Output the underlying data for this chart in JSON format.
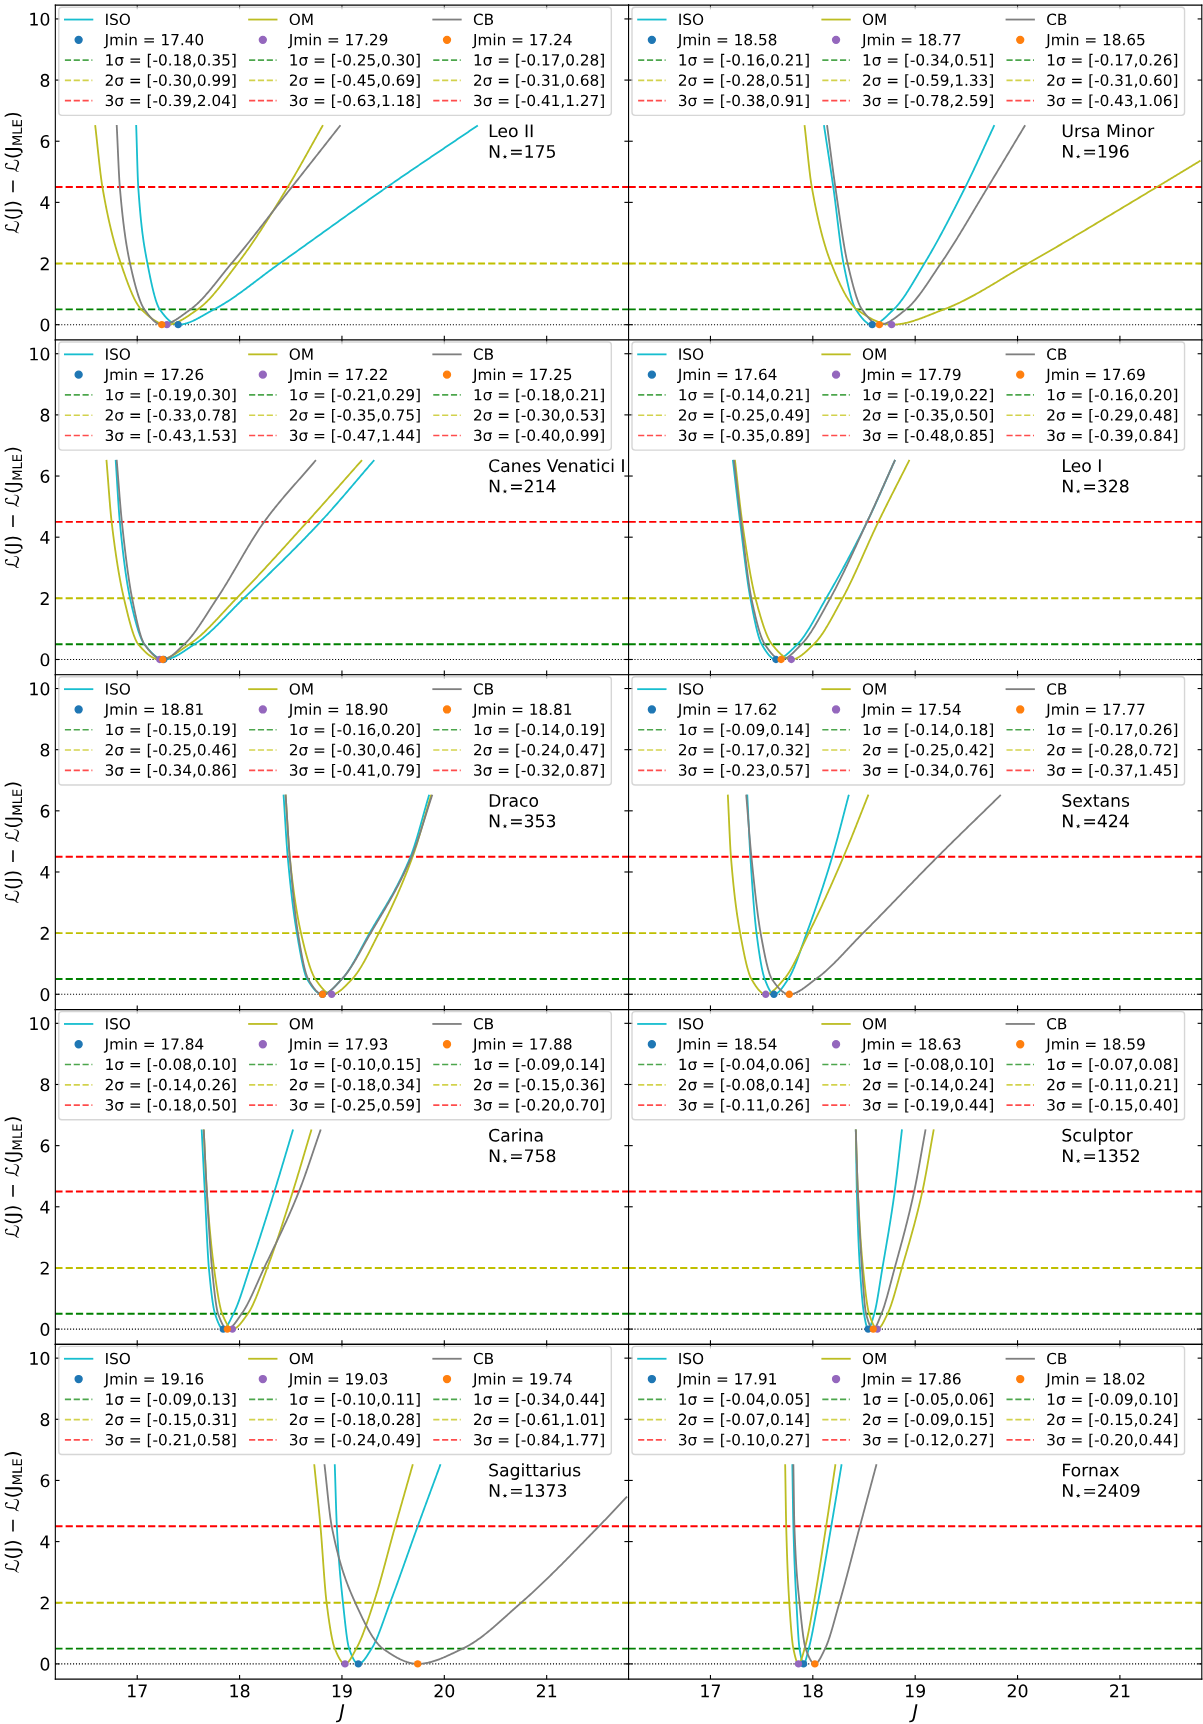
{
  "chart_data": [
    {
      "type": "line",
      "ylabel": "ℒ(J) − ℒ(J$_{MLE}$)",
      "annotations": [
        "Leo II\nN$_{⋆}$=175",
        "1σ = [-0.18,0.35]",
        "2σ = [-0.30,0.99]",
        "3σ = [-0.39,2.04]",
        "1σ = [-0.25,0.30]",
        "2σ = [-0.45,0.69]",
        "3σ = [-0.63,1.18]",
        "1σ = [-0.17,0.28]",
        "2σ = [-0.31,0.68]",
        "3σ = [-0.41,1.27]"
      ],
      "xlim": [
        16.2,
        21.8
      ],
      "ylim": [
        -0.5,
        10.45
      ],
      "xticks": [
        17,
        18,
        19,
        20,
        21
      ],
      "yticks": [
        0,
        2,
        4,
        6,
        8,
        10
      ],
      "tick_labels": "y",
      "legend": "top",
      "series": [
        {
          "name": "ISO",
          "color": "#17becf",
          "x": [
            16.99,
            17.01,
            17.1,
            17.22,
            17.4,
            17.75,
            18.39,
            19.44,
            20.32
          ],
          "values": [
            6.5,
            4.5,
            2,
            0.5,
            0,
            0.5,
            2,
            4.5,
            6.5
          ]
        },
        {
          "name": "Jmin = 17.40",
          "type": "scatter",
          "marker": "circle",
          "color": "#1f77b4",
          "x": [
            17.4
          ],
          "values": [
            0
          ]
        },
        {
          "name": "OM",
          "color": "#bcbd22",
          "x": [
            16.59,
            16.66,
            16.84,
            17.04,
            17.29,
            17.59,
            17.98,
            18.47,
            18.81
          ],
          "values": [
            6.5,
            4.5,
            2,
            0.5,
            0,
            0.5,
            2,
            4.5,
            6.5
          ]
        },
        {
          "name": "Jmin = 17.29",
          "type": "scatter",
          "marker": "circle",
          "color": "#9467bd",
          "x": [
            17.29
          ],
          "values": [
            0
          ]
        },
        {
          "name": "CB",
          "color": "#7f7f7f",
          "x": [
            16.8,
            16.83,
            16.93,
            17.07,
            17.24,
            17.52,
            17.92,
            18.51,
            18.98
          ],
          "values": [
            6.5,
            4.5,
            2,
            0.5,
            0,
            0.5,
            2,
            4.5,
            6.5
          ]
        },
        {
          "name": "Jmin = 17.24",
          "type": "scatter",
          "marker": "circle",
          "color": "#ff7f0e",
          "x": [
            17.24
          ],
          "values": [
            0
          ]
        }
      ],
      "ref_lines": [
        {
          "axis": "y",
          "value": 0.5,
          "color": "#008000",
          "line_style": "dashed"
        },
        {
          "axis": "y",
          "value": 2,
          "color": "#bfbf00",
          "line_style": "dashed"
        },
        {
          "axis": "y",
          "value": 4.5,
          "color": "#ff0000",
          "line_style": "dashed"
        },
        {
          "axis": "y",
          "value": 0,
          "color": "#000000",
          "line_style": "dotted"
        }
      ]
    },
    {
      "type": "line",
      "annotations": [
        "Ursa Minor\nN$_{⋆}$=196",
        "1σ = [-0.16,0.21]",
        "2σ = [-0.28,0.51]",
        "3σ = [-0.38,0.91]",
        "1σ = [-0.34,0.51]",
        "2σ = [-0.59,1.33]",
        "3σ = [-0.78,2.59]",
        "1σ = [-0.17,0.26]",
        "2σ = [-0.31,0.60]",
        "3σ = [-0.43,1.06]"
      ],
      "xlim": [
        16.2,
        21.8
      ],
      "ylim": [
        -0.5,
        10.45
      ],
      "xticks": [
        17,
        18,
        19,
        20,
        21
      ],
      "yticks": [
        0,
        2,
        4,
        6,
        8,
        10
      ],
      "tick_labels": false,
      "legend": "top",
      "series": [
        {
          "name": "ISO",
          "color": "#17becf",
          "x": [
            18.11,
            18.2,
            18.3,
            18.42,
            18.58,
            18.79,
            19.09,
            19.49,
            19.77
          ],
          "values": [
            6.5,
            4.5,
            2,
            0.5,
            0,
            0.5,
            2,
            4.5,
            6.5
          ]
        },
        {
          "name": "Jmin = 18.58",
          "type": "scatter",
          "marker": "circle",
          "color": "#1f77b4",
          "x": [
            18.58
          ],
          "values": [
            0
          ]
        },
        {
          "name": "OM",
          "color": "#bcbd22",
          "x": [
            17.92,
            17.99,
            18.18,
            18.43,
            18.77,
            19.28,
            20.1,
            21.36,
            21.78
          ],
          "values": [
            6.5,
            4.5,
            2,
            0.5,
            0,
            0.5,
            2,
            4.5,
            5.35
          ]
        },
        {
          "name": "Jmin = 18.77",
          "type": "scatter",
          "marker": "circle",
          "color": "#9467bd",
          "x": [
            18.77
          ],
          "values": [
            0
          ]
        },
        {
          "name": "CB",
          "color": "#7f7f7f",
          "x": [
            18.14,
            18.22,
            18.34,
            18.48,
            18.65,
            18.91,
            19.25,
            19.71,
            20.07
          ],
          "values": [
            6.5,
            4.5,
            2,
            0.5,
            0,
            0.5,
            2,
            4.5,
            6.5
          ]
        },
        {
          "name": "Jmin = 18.65",
          "type": "scatter",
          "marker": "circle",
          "color": "#ff7f0e",
          "x": [
            18.65
          ],
          "values": [
            0
          ]
        }
      ],
      "ref_lines": [
        {
          "axis": "y",
          "value": 0.5,
          "color": "#008000",
          "line_style": "dashed"
        },
        {
          "axis": "y",
          "value": 2,
          "color": "#bfbf00",
          "line_style": "dashed"
        },
        {
          "axis": "y",
          "value": 4.5,
          "color": "#ff0000",
          "line_style": "dashed"
        },
        {
          "axis": "y",
          "value": 0,
          "color": "#000000",
          "line_style": "dotted"
        }
      ]
    },
    {
      "type": "line",
      "ylabel": "ℒ(J) − ℒ(J$_{MLE}$)",
      "annotations": [
        "Canes Venatici I\nN$_{⋆}$=214",
        "1σ = [-0.19,0.30]",
        "2σ = [-0.33,0.78]",
        "3σ = [-0.43,1.53]",
        "1σ = [-0.21,0.29]",
        "2σ = [-0.35,0.75]",
        "3σ = [-0.47,1.44]",
        "1σ = [-0.18,0.21]",
        "2σ = [-0.30,0.53]",
        "3σ = [-0.40,0.99]"
      ],
      "xlim": [
        16.2,
        21.8
      ],
      "ylim": [
        -0.5,
        10.45
      ],
      "xticks": [
        17,
        18,
        19,
        20,
        21
      ],
      "yticks": [
        0,
        2,
        4,
        6,
        8,
        10
      ],
      "tick_labels": "y",
      "legend": "top",
      "series": [
        {
          "name": "ISO",
          "color": "#17becf",
          "x": [
            16.79,
            16.83,
            16.93,
            17.07,
            17.26,
            17.56,
            18.04,
            18.79,
            19.31
          ],
          "values": [
            6.5,
            4.5,
            2,
            0.5,
            0,
            0.5,
            2,
            4.5,
            6.5
          ]
        },
        {
          "name": "Jmin = 17.26",
          "type": "scatter",
          "marker": "circle",
          "color": "#1f77b4",
          "x": [
            17.26
          ],
          "values": [
            0
          ]
        },
        {
          "name": "OM",
          "color": "#bcbd22",
          "x": [
            16.7,
            16.75,
            16.87,
            17.01,
            17.22,
            17.51,
            17.97,
            18.66,
            19.19
          ],
          "values": [
            6.5,
            4.5,
            2,
            0.5,
            0,
            0.5,
            2,
            4.5,
            6.5
          ]
        },
        {
          "name": "Jmin = 17.22",
          "type": "scatter",
          "marker": "circle",
          "color": "#9467bd",
          "x": [
            17.22
          ],
          "values": [
            0
          ]
        },
        {
          "name": "CB",
          "color": "#7f7f7f",
          "x": [
            16.8,
            16.85,
            16.95,
            17.07,
            17.25,
            17.46,
            17.78,
            18.24,
            18.74
          ],
          "values": [
            6.5,
            4.5,
            2,
            0.5,
            0,
            0.5,
            2,
            4.5,
            6.5
          ]
        },
        {
          "name": "Jmin = 17.25",
          "type": "scatter",
          "marker": "circle",
          "color": "#ff7f0e",
          "x": [
            17.25
          ],
          "values": [
            0
          ]
        }
      ],
      "ref_lines": [
        {
          "axis": "y",
          "value": 0.5,
          "color": "#008000",
          "line_style": "dashed"
        },
        {
          "axis": "y",
          "value": 2,
          "color": "#bfbf00",
          "line_style": "dashed"
        },
        {
          "axis": "y",
          "value": 4.5,
          "color": "#ff0000",
          "line_style": "dashed"
        },
        {
          "axis": "y",
          "value": 0,
          "color": "#000000",
          "line_style": "dotted"
        }
      ]
    },
    {
      "type": "line",
      "annotations": [
        "Leo I\nN$_{⋆}$=328",
        "1σ = [-0.14,0.21]",
        "2σ = [-0.25,0.49]",
        "3σ = [-0.35,0.89]",
        "1σ = [-0.19,0.22]",
        "2σ = [-0.35,0.50]",
        "3σ = [-0.48,0.85]",
        "1σ = [-0.16,0.20]",
        "2σ = [-0.29,0.48]",
        "3σ = [-0.39,0.84]"
      ],
      "xlim": [
        16.2,
        21.8
      ],
      "ylim": [
        -0.5,
        10.45
      ],
      "xticks": [
        17,
        18,
        19,
        20,
        21
      ],
      "yticks": [
        0,
        2,
        4,
        6,
        8,
        10
      ],
      "tick_labels": false,
      "legend": "top",
      "series": [
        {
          "name": "ISO",
          "color": "#17becf",
          "x": [
            17.22,
            17.29,
            17.39,
            17.5,
            17.64,
            17.85,
            18.13,
            18.53,
            18.8
          ],
          "values": [
            6.5,
            4.5,
            2,
            0.5,
            0,
            0.5,
            2,
            4.5,
            6.5
          ]
        },
        {
          "name": "Jmin = 17.64",
          "type": "scatter",
          "marker": "circle",
          "color": "#1f77b4",
          "x": [
            17.64
          ],
          "values": [
            0
          ]
        },
        {
          "name": "OM",
          "color": "#bcbd22",
          "x": [
            17.24,
            17.31,
            17.44,
            17.6,
            17.79,
            18.01,
            18.29,
            18.64,
            18.94
          ],
          "values": [
            6.5,
            4.5,
            2,
            0.5,
            0,
            0.5,
            2,
            4.5,
            6.5
          ]
        },
        {
          "name": "Jmin = 17.79",
          "type": "scatter",
          "marker": "circle",
          "color": "#9467bd",
          "x": [
            17.79
          ],
          "values": [
            0
          ]
        },
        {
          "name": "CB",
          "color": "#7f7f7f",
          "x": [
            17.23,
            17.3,
            17.4,
            17.53,
            17.69,
            17.89,
            18.17,
            18.53,
            18.8
          ],
          "values": [
            6.5,
            4.5,
            2,
            0.5,
            0,
            0.5,
            2,
            4.5,
            6.5
          ]
        },
        {
          "name": "Jmin = 17.69",
          "type": "scatter",
          "marker": "circle",
          "color": "#ff7f0e",
          "x": [
            17.69
          ],
          "values": [
            0
          ]
        }
      ],
      "ref_lines": [
        {
          "axis": "y",
          "value": 0.5,
          "color": "#008000",
          "line_style": "dashed"
        },
        {
          "axis": "y",
          "value": 2,
          "color": "#bfbf00",
          "line_style": "dashed"
        },
        {
          "axis": "y",
          "value": 4.5,
          "color": "#ff0000",
          "line_style": "dashed"
        },
        {
          "axis": "y",
          "value": 0,
          "color": "#000000",
          "line_style": "dotted"
        }
      ]
    },
    {
      "type": "line",
      "ylabel": "ℒ(J) − ℒ(J$_{MLE}$)",
      "annotations": [
        "Draco\nN$_{⋆}$=353",
        "1σ = [-0.15,0.19]",
        "2σ = [-0.25,0.46]",
        "3σ = [-0.34,0.86]",
        "1σ = [-0.16,0.20]",
        "2σ = [-0.30,0.46]",
        "3σ = [-0.41,0.79]",
        "1σ = [-0.14,0.19]",
        "2σ = [-0.24,0.47]",
        "3σ = [-0.32,0.87]"
      ],
      "xlim": [
        16.2,
        21.8
      ],
      "ylim": [
        -0.5,
        10.45
      ],
      "xticks": [
        17,
        18,
        19,
        20,
        21
      ],
      "yticks": [
        0,
        2,
        4,
        6,
        8,
        10
      ],
      "tick_labels": "y",
      "legend": "top",
      "series": [
        {
          "name": "ISO",
          "color": "#17becf",
          "x": [
            18.43,
            18.47,
            18.56,
            18.66,
            18.81,
            19.0,
            19.27,
            19.67,
            19.85
          ],
          "values": [
            6.5,
            4.5,
            2,
            0.5,
            0,
            0.5,
            2,
            4.5,
            6.5
          ]
        },
        {
          "name": "Jmin = 18.81",
          "type": "scatter",
          "marker": "circle",
          "color": "#1f77b4",
          "x": [
            18.81
          ],
          "values": [
            0
          ]
        },
        {
          "name": "OM",
          "color": "#bcbd22",
          "x": [
            18.45,
            18.49,
            18.6,
            18.74,
            18.9,
            19.1,
            19.36,
            19.69,
            19.87
          ],
          "values": [
            6.5,
            4.5,
            2,
            0.5,
            0,
            0.5,
            2,
            4.5,
            6.5
          ]
        },
        {
          "name": "Jmin = 18.90",
          "type": "scatter",
          "marker": "circle",
          "color": "#9467bd",
          "x": [
            18.9
          ],
          "values": [
            0
          ]
        },
        {
          "name": "CB",
          "color": "#7f7f7f",
          "x": [
            18.45,
            18.49,
            18.57,
            18.67,
            18.81,
            19.0,
            19.28,
            19.68,
            19.88
          ],
          "values": [
            6.5,
            4.5,
            2,
            0.5,
            0,
            0.5,
            2,
            4.5,
            6.5
          ]
        },
        {
          "name": "Jmin = 18.81",
          "type": "scatter",
          "marker": "circle",
          "color": "#ff7f0e",
          "x": [
            18.81
          ],
          "values": [
            0
          ]
        }
      ],
      "ref_lines": [
        {
          "axis": "y",
          "value": 0.5,
          "color": "#008000",
          "line_style": "dashed"
        },
        {
          "axis": "y",
          "value": 2,
          "color": "#bfbf00",
          "line_style": "dashed"
        },
        {
          "axis": "y",
          "value": 4.5,
          "color": "#ff0000",
          "line_style": "dashed"
        },
        {
          "axis": "y",
          "value": 0,
          "color": "#000000",
          "line_style": "dotted"
        }
      ]
    },
    {
      "type": "line",
      "annotations": [
        "Sextans\nN$_{⋆}$=424",
        "1σ = [-0.09,0.14]",
        "2σ = [-0.17,0.32]",
        "3σ = [-0.23,0.57]",
        "1σ = [-0.14,0.18]",
        "2σ = [-0.25,0.42]",
        "3σ = [-0.34,0.76]",
        "1σ = [-0.17,0.26]",
        "2σ = [-0.28,0.72]",
        "3σ = [-0.37,1.45]"
      ],
      "xlim": [
        16.2,
        21.8
      ],
      "ylim": [
        -0.5,
        10.45
      ],
      "xticks": [
        17,
        18,
        19,
        20,
        21
      ],
      "yticks": [
        0,
        2,
        4,
        6,
        8,
        10
      ],
      "tick_labels": false,
      "legend": "top",
      "series": [
        {
          "name": "ISO",
          "color": "#17becf",
          "x": [
            17.36,
            17.39,
            17.45,
            17.53,
            17.62,
            17.76,
            17.94,
            18.19,
            18.35
          ],
          "values": [
            6.5,
            4.5,
            2,
            0.5,
            0,
            0.5,
            2,
            4.5,
            6.5
          ]
        },
        {
          "name": "Jmin = 17.62",
          "type": "scatter",
          "marker": "circle",
          "color": "#1f77b4",
          "x": [
            17.62
          ],
          "values": [
            0
          ]
        },
        {
          "name": "OM",
          "color": "#bcbd22",
          "x": [
            17.17,
            17.2,
            17.29,
            17.4,
            17.54,
            17.72,
            17.96,
            18.3,
            18.54
          ],
          "values": [
            6.5,
            4.5,
            2,
            0.5,
            0,
            0.5,
            2,
            4.5,
            6.5
          ]
        },
        {
          "name": "Jmin = 17.54",
          "type": "scatter",
          "marker": "circle",
          "color": "#9467bd",
          "x": [
            17.54
          ],
          "values": [
            0
          ]
        },
        {
          "name": "CB",
          "color": "#7f7f7f",
          "x": [
            17.35,
            17.4,
            17.49,
            17.6,
            17.77,
            18.03,
            18.49,
            19.22,
            19.83
          ],
          "values": [
            6.5,
            4.5,
            2,
            0.5,
            0,
            0.5,
            2,
            4.5,
            6.5
          ]
        },
        {
          "name": "Jmin = 17.77",
          "type": "scatter",
          "marker": "circle",
          "color": "#ff7f0e",
          "x": [
            17.77
          ],
          "values": [
            0
          ]
        }
      ],
      "ref_lines": [
        {
          "axis": "y",
          "value": 0.5,
          "color": "#008000",
          "line_style": "dashed"
        },
        {
          "axis": "y",
          "value": 2,
          "color": "#bfbf00",
          "line_style": "dashed"
        },
        {
          "axis": "y",
          "value": 4.5,
          "color": "#ff0000",
          "line_style": "dashed"
        },
        {
          "axis": "y",
          "value": 0,
          "color": "#000000",
          "line_style": "dotted"
        }
      ]
    },
    {
      "type": "line",
      "ylabel": "ℒ(J) − ℒ(J$_{MLE}$)",
      "annotations": [
        "Carina\nN$_{⋆}$=758",
        "1σ = [-0.08,0.10]",
        "2σ = [-0.14,0.26]",
        "3σ = [-0.18,0.50]",
        "1σ = [-0.10,0.15]",
        "2σ = [-0.18,0.34]",
        "3σ = [-0.25,0.59]",
        "1σ = [-0.09,0.14]",
        "2σ = [-0.15,0.36]",
        "3σ = [-0.20,0.70]"
      ],
      "xlim": [
        16.2,
        21.8
      ],
      "ylim": [
        -0.5,
        10.45
      ],
      "xticks": [
        17,
        18,
        19,
        20,
        21
      ],
      "yticks": [
        0,
        2,
        4,
        6,
        8,
        10
      ],
      "tick_labels": "y",
      "legend": "top",
      "series": [
        {
          "name": "ISO",
          "color": "#17becf",
          "x": [
            17.63,
            17.66,
            17.7,
            17.76,
            17.84,
            17.94,
            18.1,
            18.34,
            18.52
          ],
          "values": [
            6.5,
            4.5,
            2,
            0.5,
            0,
            0.5,
            2,
            4.5,
            6.5
          ]
        },
        {
          "name": "Jmin = 17.84",
          "type": "scatter",
          "marker": "circle",
          "color": "#1f77b4",
          "x": [
            17.84
          ],
          "values": [
            0
          ]
        },
        {
          "name": "OM",
          "color": "#bcbd22",
          "x": [
            17.65,
            17.68,
            17.75,
            17.83,
            17.93,
            18.08,
            18.27,
            18.52,
            18.7
          ],
          "values": [
            6.5,
            4.5,
            2,
            0.5,
            0,
            0.5,
            2,
            4.5,
            6.5
          ]
        },
        {
          "name": "Jmin = 17.93",
          "type": "scatter",
          "marker": "circle",
          "color": "#9467bd",
          "x": [
            17.93
          ],
          "values": [
            0
          ]
        },
        {
          "name": "CB",
          "color": "#7f7f7f",
          "x": [
            17.65,
            17.68,
            17.73,
            17.79,
            17.88,
            18.02,
            18.24,
            18.58,
            18.79
          ],
          "values": [
            6.5,
            4.5,
            2,
            0.5,
            0,
            0.5,
            2,
            4.5,
            6.5
          ]
        },
        {
          "name": "Jmin = 17.88",
          "type": "scatter",
          "marker": "circle",
          "color": "#ff7f0e",
          "x": [
            17.88
          ],
          "values": [
            0
          ]
        }
      ],
      "ref_lines": [
        {
          "axis": "y",
          "value": 0.5,
          "color": "#008000",
          "line_style": "dashed"
        },
        {
          "axis": "y",
          "value": 2,
          "color": "#bfbf00",
          "line_style": "dashed"
        },
        {
          "axis": "y",
          "value": 4.5,
          "color": "#ff0000",
          "line_style": "dashed"
        },
        {
          "axis": "y",
          "value": 0,
          "color": "#000000",
          "line_style": "dotted"
        }
      ]
    },
    {
      "type": "line",
      "annotations": [
        "Sculptor\nN$_{⋆}$=1352",
        "1σ = [-0.04,0.06]",
        "2σ = [-0.08,0.14]",
        "3σ = [-0.11,0.26]",
        "1σ = [-0.08,0.10]",
        "2σ = [-0.14,0.24]",
        "3σ = [-0.19,0.44]",
        "1σ = [-0.07,0.08]",
        "2σ = [-0.11,0.21]",
        "3σ = [-0.15,0.40]"
      ],
      "xlim": [
        16.2,
        21.8
      ],
      "ylim": [
        -0.5,
        10.45
      ],
      "xticks": [
        17,
        18,
        19,
        20,
        21
      ],
      "yticks": [
        0,
        2,
        4,
        6,
        8,
        10
      ],
      "tick_labels": false,
      "legend": "top",
      "series": [
        {
          "name": "ISO",
          "color": "#17becf",
          "x": [
            18.42,
            18.43,
            18.46,
            18.5,
            18.54,
            18.6,
            18.68,
            18.8,
            18.87
          ],
          "values": [
            6.5,
            4.5,
            2,
            0.5,
            0,
            0.5,
            2,
            4.5,
            6.5
          ]
        },
        {
          "name": "Jmin = 18.54",
          "type": "scatter",
          "marker": "circle",
          "color": "#1f77b4",
          "x": [
            18.54
          ],
          "values": [
            0
          ]
        },
        {
          "name": "OM",
          "color": "#bcbd22",
          "x": [
            18.42,
            18.44,
            18.49,
            18.55,
            18.63,
            18.73,
            18.87,
            19.07,
            19.18
          ],
          "values": [
            6.5,
            4.5,
            2,
            0.5,
            0,
            0.5,
            2,
            4.5,
            6.5
          ]
        },
        {
          "name": "Jmin = 18.63",
          "type": "scatter",
          "marker": "circle",
          "color": "#9467bd",
          "x": [
            18.63
          ],
          "values": [
            0
          ]
        },
        {
          "name": "CB",
          "color": "#7f7f7f",
          "x": [
            18.42,
            18.44,
            18.48,
            18.52,
            18.59,
            18.67,
            18.8,
            18.99,
            19.1
          ],
          "values": [
            6.5,
            4.5,
            2,
            0.5,
            0,
            0.5,
            2,
            4.5,
            6.5
          ]
        },
        {
          "name": "Jmin = 18.59",
          "type": "scatter",
          "marker": "circle",
          "color": "#ff7f0e",
          "x": [
            18.59
          ],
          "values": [
            0
          ]
        }
      ],
      "ref_lines": [
        {
          "axis": "y",
          "value": 0.5,
          "color": "#008000",
          "line_style": "dashed"
        },
        {
          "axis": "y",
          "value": 2,
          "color": "#bfbf00",
          "line_style": "dashed"
        },
        {
          "axis": "y",
          "value": 4.5,
          "color": "#ff0000",
          "line_style": "dashed"
        },
        {
          "axis": "y",
          "value": 0,
          "color": "#000000",
          "line_style": "dotted"
        }
      ]
    },
    {
      "type": "line",
      "xlabel": "J",
      "ylabel": "ℒ(J) − ℒ(J$_{MLE}$)",
      "annotations": [
        "Sagittarius\nN$_{⋆}$=1373",
        "1σ = [-0.09,0.13]",
        "2σ = [-0.15,0.31]",
        "3σ = [-0.21,0.58]",
        "1σ = [-0.10,0.11]",
        "2σ = [-0.18,0.28]",
        "3σ = [-0.24,0.49]",
        "1σ = [-0.34,0.44]",
        "2σ = [-0.61,1.01]",
        "3σ = [-0.84,1.77]"
      ],
      "xlim": [
        16.2,
        21.8
      ],
      "ylim": [
        -0.5,
        10.45
      ],
      "xticks": [
        17,
        18,
        19,
        20,
        21
      ],
      "yticks": [
        0,
        2,
        4,
        6,
        8,
        10
      ],
      "legend": "top",
      "series": [
        {
          "name": "ISO",
          "color": "#17becf",
          "x": [
            18.93,
            18.95,
            19.01,
            19.07,
            19.16,
            19.29,
            19.47,
            19.74,
            19.96
          ],
          "values": [
            6.5,
            4.5,
            2,
            0.5,
            0,
            0.5,
            2,
            4.5,
            6.5
          ]
        },
        {
          "name": "Jmin = 19.16",
          "type": "scatter",
          "marker": "circle",
          "color": "#1f77b4",
          "x": [
            19.16
          ],
          "values": [
            0
          ]
        },
        {
          "name": "OM",
          "color": "#bcbd22",
          "x": [
            18.73,
            18.79,
            18.85,
            18.93,
            19.03,
            19.14,
            19.31,
            19.52,
            19.69
          ],
          "values": [
            6.5,
            4.5,
            2,
            0.5,
            0,
            0.5,
            2,
            4.5,
            6.5
          ]
        },
        {
          "name": "Jmin = 19.03",
          "type": "scatter",
          "marker": "circle",
          "color": "#9467bd",
          "x": [
            19.03
          ],
          "values": [
            0
          ]
        },
        {
          "name": "CB",
          "color": "#7f7f7f",
          "x": [
            18.83,
            18.9,
            19.13,
            19.4,
            19.74,
            20.18,
            20.75,
            21.51,
            21.78
          ],
          "values": [
            6.5,
            4.5,
            2,
            0.5,
            0,
            0.5,
            2,
            4.5,
            5.45
          ]
        },
        {
          "name": "Jmin = 19.74",
          "type": "scatter",
          "marker": "circle",
          "color": "#ff7f0e",
          "x": [
            19.74
          ],
          "values": [
            0
          ]
        }
      ],
      "ref_lines": [
        {
          "axis": "y",
          "value": 0.5,
          "color": "#008000",
          "line_style": "dashed"
        },
        {
          "axis": "y",
          "value": 2,
          "color": "#bfbf00",
          "line_style": "dashed"
        },
        {
          "axis": "y",
          "value": 4.5,
          "color": "#ff0000",
          "line_style": "dashed"
        },
        {
          "axis": "y",
          "value": 0,
          "color": "#000000",
          "line_style": "dotted"
        }
      ]
    },
    {
      "type": "line",
      "xlabel": "J",
      "annotations": [
        "Fornax\nN$_{⋆}$=2409",
        "1σ = [-0.04,0.05]",
        "2σ = [-0.07,0.14]",
        "3σ = [-0.10,0.27]",
        "1σ = [-0.05,0.06]",
        "2σ = [-0.09,0.15]",
        "3σ = [-0.12,0.27]",
        "1σ = [-0.09,0.10]",
        "2σ = [-0.15,0.24]",
        "3σ = [-0.20,0.44]"
      ],
      "xlim": [
        16.2,
        21.8
      ],
      "ylim": [
        -0.5,
        10.45
      ],
      "xticks": [
        17,
        18,
        19,
        20,
        21
      ],
      "yticks": [
        0,
        2,
        4,
        6,
        8,
        10
      ],
      "tick_labels": "x",
      "legend": "top",
      "series": [
        {
          "name": "ISO",
          "color": "#17becf",
          "x": [
            17.8,
            17.81,
            17.84,
            17.87,
            17.91,
            17.96,
            18.05,
            18.18,
            18.28
          ],
          "values": [
            6.5,
            4.5,
            2,
            0.5,
            0,
            0.5,
            2,
            4.5,
            6.5
          ]
        },
        {
          "name": "Jmin = 17.91",
          "type": "scatter",
          "marker": "circle",
          "color": "#1f77b4",
          "x": [
            17.91
          ],
          "values": [
            0
          ]
        },
        {
          "name": "OM",
          "color": "#bcbd22",
          "x": [
            17.73,
            17.74,
            17.77,
            17.81,
            17.86,
            17.92,
            18.01,
            18.13,
            18.22
          ],
          "values": [
            6.5,
            4.5,
            2,
            0.5,
            0,
            0.5,
            2,
            4.5,
            6.5
          ]
        },
        {
          "name": "Jmin = 17.86",
          "type": "scatter",
          "marker": "circle",
          "color": "#9467bd",
          "x": [
            17.86
          ],
          "values": [
            0
          ]
        },
        {
          "name": "CB",
          "color": "#7f7f7f",
          "x": [
            17.81,
            17.82,
            17.87,
            17.93,
            18.02,
            18.12,
            18.26,
            18.46,
            18.62
          ],
          "values": [
            6.5,
            4.5,
            2,
            0.5,
            0,
            0.5,
            2,
            4.5,
            6.5
          ]
        },
        {
          "name": "Jmin = 18.02",
          "type": "scatter",
          "marker": "circle",
          "color": "#ff7f0e",
          "x": [
            18.02
          ],
          "values": [
            0
          ]
        }
      ],
      "ref_lines": [
        {
          "axis": "y",
          "value": 0.5,
          "color": "#008000",
          "line_style": "dashed"
        },
        {
          "axis": "y",
          "value": 2,
          "color": "#bfbf00",
          "line_style": "dashed"
        },
        {
          "axis": "y",
          "value": 4.5,
          "color": "#ff0000",
          "line_style": "dashed"
        },
        {
          "axis": "y",
          "value": 0,
          "color": "#000000",
          "line_style": "dotted"
        }
      ]
    }
  ]
}
